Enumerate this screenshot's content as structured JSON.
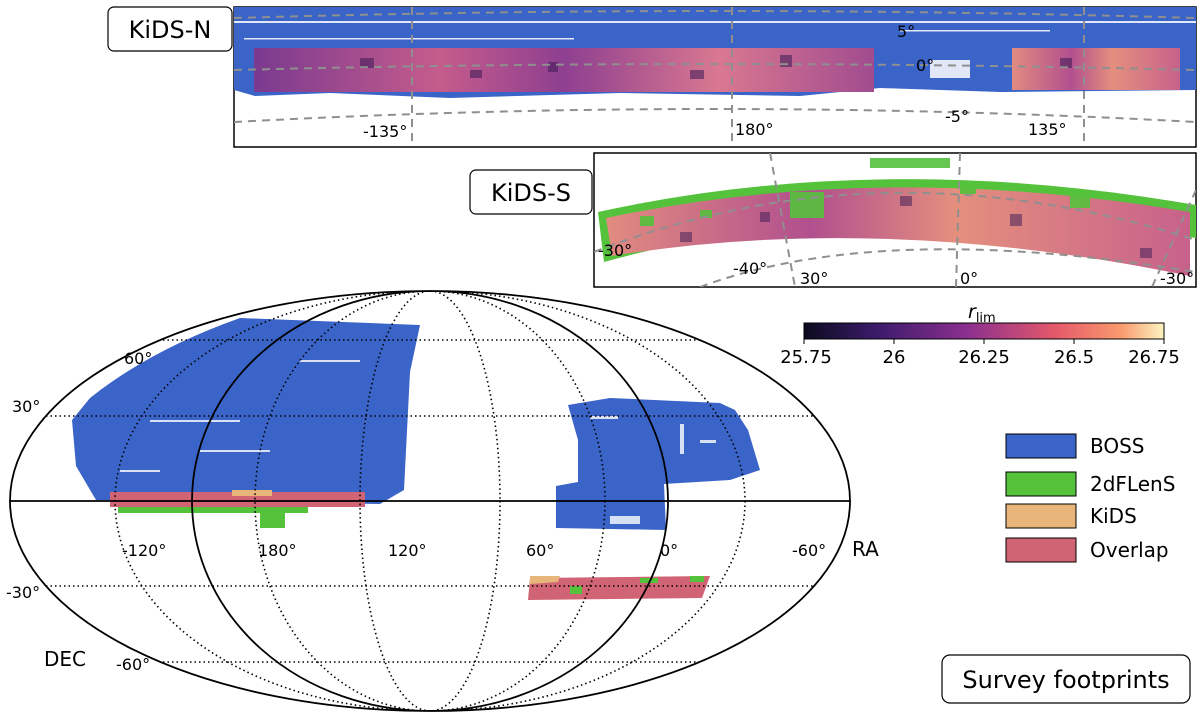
{
  "colors": {
    "boss": "#3a64c8",
    "twodflens": "#55c23c",
    "kids": "#e8b57a",
    "overlap": "#d06474",
    "frame": "#000000",
    "guide": "#999999"
  },
  "panels": {
    "north": {
      "label": "KiDS-N",
      "ra_labels": [
        "-135°",
        "180°",
        "135°"
      ],
      "dec_labels": [
        "5°",
        "0°",
        "-5°"
      ]
    },
    "south": {
      "label": "KiDS-S",
      "ra_labels": [
        "30°",
        "0°",
        "-30°"
      ],
      "dec_labels": [
        "-30°",
        "-40°"
      ]
    }
  },
  "colorbar": {
    "title": "r",
    "title_sub": "lim",
    "ticks": [
      "25.75",
      "26",
      "26.25",
      "26.5",
      "26.75"
    ],
    "range": [
      25.75,
      26.75
    ]
  },
  "skymap": {
    "projection": "mollweide",
    "dec_labels": [
      "60°",
      "30°",
      "-30°",
      "-60°"
    ],
    "ra_labels": [
      "-120°",
      "180°",
      "120°",
      "60°",
      "0°",
      "-60°"
    ],
    "axis_ra": "RA",
    "axis_dec": "DEC"
  },
  "legend": {
    "placement": "right",
    "items": [
      {
        "label": "BOSS",
        "color": "#3a64c8"
      },
      {
        "label": "2dFLenS",
        "color": "#55c23c"
      },
      {
        "label": "KiDS",
        "color": "#e8b57a"
      },
      {
        "label": "Overlap",
        "color": "#d06474"
      }
    ]
  },
  "title": "Survey footprints"
}
